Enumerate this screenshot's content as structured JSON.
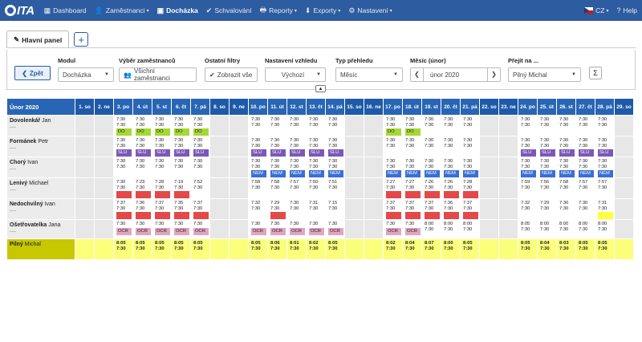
{
  "nav": {
    "logo_text": "ITA",
    "items": [
      {
        "label": "Dashboard",
        "icon": "grid-icon"
      },
      {
        "label": "Zaměstnanci",
        "icon": "user-icon"
      },
      {
        "label": "Docházka",
        "icon": "calendar-icon",
        "active": true
      },
      {
        "label": "Schvalování",
        "icon": "check-icon"
      },
      {
        "label": "Reporty",
        "icon": "print-icon"
      },
      {
        "label": "Exporty",
        "icon": "download-icon"
      },
      {
        "label": "Nastavení",
        "icon": "gear-icon"
      }
    ],
    "lang": "CZ",
    "help": "Help"
  },
  "tabs": {
    "main": "Hlavní panel",
    "add": "+"
  },
  "filters": {
    "back": "Zpět",
    "modul_label": "Modul",
    "modul_value": "Docházka",
    "employees_label": "Výběr zaměstnanců",
    "employees_value": "Všichni zaměstnanci",
    "other_label": "Ostatní filtry",
    "other_value": "Zobrazit vše",
    "look_label": "Nastavení vzhledu",
    "look_value": "Výchozí",
    "overview_label": "Typ přehledu",
    "overview_value": "Měsíc",
    "month_label": "Měsíc (únor)",
    "month_value": "únor 2020",
    "goto_label": "Přejít na ...",
    "goto_value": "Pilný Michal",
    "sigma": "Σ"
  },
  "grid": {
    "title": "Únor 2020",
    "days": [
      "1. so",
      "2. ne",
      "3. po",
      "4. út",
      "5. st",
      "6. čt",
      "7. pá",
      "8. so",
      "9. ne",
      "10. po",
      "11. út",
      "12. st",
      "13. čt",
      "14. pá",
      "15. so",
      "16. ne",
      "17. po",
      "18. út",
      "19. st",
      "20. čt",
      "21. pá",
      "22. so",
      "23. ne",
      "24. po",
      "25. út",
      "26. st",
      "27. čt",
      "28. pá",
      "29. so"
    ],
    "weekend": [
      0,
      1,
      7,
      8,
      14,
      15,
      21,
      22,
      28
    ],
    "employees": [
      {
        "last": "Dovolenkář",
        "first": "Jan",
        "sub": "----",
        "cells": {
          "2": [
            "7:30",
            "7:30",
            "DO",
            "green"
          ],
          "3": [
            "7:30",
            "7:30",
            "DO",
            "green"
          ],
          "4": [
            "7:30",
            "7:30",
            "DO",
            "green"
          ],
          "5": [
            "7:30",
            "7:30",
            "DO",
            "green"
          ],
          "6": [
            "7:30",
            "7:30",
            "DO",
            "green"
          ],
          "9": [
            "7:30",
            "7:30",
            ""
          ],
          "10": [
            "7:30",
            "7:30",
            ""
          ],
          "11": [
            "7:30",
            "7:30",
            ""
          ],
          "12": [
            "7:30",
            "7:30",
            ""
          ],
          "13": [
            "7:30",
            "7:30",
            ""
          ],
          "16": [
            "7:30",
            "7:30",
            "DO",
            "green"
          ],
          "17": [
            "7:30",
            "7:30",
            "DO",
            "green"
          ],
          "18": [
            "7:30",
            "7:30",
            ""
          ],
          "19": [
            "7:30",
            "7:30",
            ""
          ],
          "20": [
            "7:30",
            "7:30",
            ""
          ],
          "23": [
            "7:30",
            "7:30",
            ""
          ],
          "24": [
            "7:30",
            "7:30",
            ""
          ],
          "25": [
            "7:30",
            "7:30",
            ""
          ],
          "26": [
            "7:30",
            "7:30",
            ""
          ],
          "27": [
            "7:30",
            "7:30",
            ""
          ]
        }
      },
      {
        "last": "Formánek",
        "first": "Petr",
        "sub": "----",
        "cells": {
          "2": [
            "7:30",
            "7:30",
            "SLU",
            "purple"
          ],
          "3": [
            "7:30",
            "7:30",
            "SLU",
            "purple"
          ],
          "4": [
            "7:30",
            "7:30",
            "SLU",
            "purple"
          ],
          "5": [
            "7:30",
            "7:30",
            "SLU",
            "purple"
          ],
          "6": [
            "7:30",
            "7:30",
            "SLU",
            "purple"
          ],
          "9": [
            "7:30",
            "7:30",
            "SLU",
            "purple"
          ],
          "10": [
            "7:30",
            "7:30",
            "SLU",
            "purple"
          ],
          "11": [
            "7:30",
            "7:30",
            "SLU",
            "purple"
          ],
          "12": [
            "7:30",
            "7:30",
            "SLU",
            "purple"
          ],
          "13": [
            "7:30",
            "7:30",
            "SLU",
            "purple"
          ],
          "16": [
            "7:30",
            "7:30",
            ""
          ],
          "17": [
            "7:30",
            "7:30",
            ""
          ],
          "18": [
            "7:30",
            "7:30",
            ""
          ],
          "19": [
            "7:30",
            "7:30",
            ""
          ],
          "20": [
            "7:30",
            "7:30",
            ""
          ],
          "23": [
            "7:30",
            "7:30",
            "SLU",
            "purple"
          ],
          "24": [
            "7:30",
            "7:30",
            "SLU",
            "purple"
          ],
          "25": [
            "7:30",
            "7:30",
            "SLU",
            "purple"
          ],
          "26": [
            "7:30",
            "7:30",
            "SLU",
            "purple"
          ],
          "27": [
            "7:30",
            "7:30",
            "SLU",
            "purple"
          ]
        }
      },
      {
        "last": "Chorý",
        "first": "Ivan",
        "sub": "----",
        "cells": {
          "2": [
            "7:30",
            "7:30",
            ""
          ],
          "3": [
            "7:30",
            "7:30",
            ""
          ],
          "4": [
            "7:30",
            "7:30",
            ""
          ],
          "5": [
            "7:30",
            "7:30",
            ""
          ],
          "6": [
            "7:30",
            "7:30",
            ""
          ],
          "9": [
            "7:30",
            "7:30",
            "NEM",
            "blue"
          ],
          "10": [
            "7:30",
            "7:30",
            "NEM",
            "blue"
          ],
          "11": [
            "7:30",
            "7:30",
            "NEM",
            "blue"
          ],
          "12": [
            "7:30",
            "7:30",
            "NEM",
            "blue"
          ],
          "13": [
            "7:30",
            "7:30",
            "NEM",
            "blue"
          ],
          "16": [
            "7:30",
            "7:30",
            "NEM",
            "blue"
          ],
          "17": [
            "7:30",
            "7:30",
            "NEM",
            "blue"
          ],
          "18": [
            "7:30",
            "7:30",
            "NEM",
            "blue"
          ],
          "19": [
            "7:30",
            "7:30",
            "NEM",
            "blue"
          ],
          "20": [
            "7:30",
            "7:30",
            "NEM",
            "blue"
          ],
          "23": [
            "7:30",
            "7:30",
            "NEM",
            "blue"
          ],
          "24": [
            "7:30",
            "7:30",
            "NEM",
            "blue"
          ],
          "25": [
            "7:30",
            "7:30",
            "NEM",
            "blue"
          ],
          "26": [
            "7:30",
            "7:30",
            "NEM",
            "blue"
          ],
          "27": [
            "7:30",
            "7:30",
            "NEM",
            "blue"
          ]
        }
      },
      {
        "last": "Lenivý",
        "first": "Michael",
        "sub": "----",
        "cells": {
          "2": [
            "7:30",
            "7:30",
            "",
            "red"
          ],
          "3": [
            "7:23",
            "7:30",
            "",
            "red"
          ],
          "4": [
            "7:28",
            "7:30",
            "",
            "red"
          ],
          "5": [
            "7:19",
            "7:30",
            "",
            "red"
          ],
          "6": [
            "7:52",
            "7:30",
            ""
          ],
          "9": [
            "7:58",
            "7:30",
            ""
          ],
          "10": [
            "7:58",
            "7:30",
            ""
          ],
          "11": [
            "7:57",
            "7:30",
            ""
          ],
          "12": [
            "7:50",
            "7:30",
            ""
          ],
          "13": [
            "7:51",
            "7:30",
            ""
          ],
          "16": [
            "7:27",
            "7:30",
            "",
            "red"
          ],
          "17": [
            "7:27",
            "7:30",
            "",
            "red"
          ],
          "18": [
            "7:26",
            "7:30",
            "",
            "red"
          ],
          "19": [
            "7:26",
            "7:30",
            "",
            "red"
          ],
          "20": [
            "7:28",
            "7:30",
            "",
            "red"
          ],
          "23": [
            "7:59",
            "7:30",
            ""
          ],
          "24": [
            "7:56",
            "7:30",
            ""
          ],
          "25": [
            "7:58",
            "7:30",
            ""
          ],
          "26": [
            "7:57",
            "7:30",
            ""
          ],
          "27": [
            "7:57",
            "7:30",
            ""
          ]
        }
      },
      {
        "last": "Nedochvilný",
        "first": "Ivan",
        "sub": "----",
        "cells": {
          "2": [
            "7:37",
            "7:30",
            "",
            "red"
          ],
          "3": [
            "7:36",
            "7:30",
            "",
            "red"
          ],
          "4": [
            "7:37",
            "7:30",
            "",
            "red"
          ],
          "5": [
            "7:35",
            "7:30",
            "",
            "red"
          ],
          "6": [
            "7:37",
            "7:30",
            "",
            "red"
          ],
          "9": [
            "7:32",
            "7:30",
            ""
          ],
          "10": [
            "7:29",
            "7:30",
            "",
            "red"
          ],
          "11": [
            "7:30",
            "7:30",
            ""
          ],
          "12": [
            "7:31",
            "7:30",
            ""
          ],
          "13": [
            "7:15",
            "7:30",
            ""
          ],
          "16": [
            "7:37",
            "7:30",
            "",
            "red"
          ],
          "17": [
            "7:37",
            "7:30",
            "",
            "red"
          ],
          "18": [
            "7:37",
            "7:30",
            "",
            "red"
          ],
          "19": [
            "7:36",
            "7:30",
            "",
            "red"
          ],
          "20": [
            "7:37",
            "7:30",
            "",
            "red"
          ],
          "23": [
            "7:32",
            "7:30",
            ""
          ],
          "24": [
            "7:29",
            "7:30",
            ""
          ],
          "25": [
            "7:30",
            "7:30",
            ""
          ],
          "26": [
            "7:30",
            "7:30",
            ""
          ],
          "27": [
            "7:31",
            "7:30",
            "",
            "yellowbox"
          ]
        }
      },
      {
        "last": "Ošetřovatelka",
        "first": "Jana",
        "sub": "----",
        "cells": {
          "2": [
            "7:30",
            "",
            "OCR",
            "pink"
          ],
          "3": [
            "7:30",
            "",
            "OCR",
            "pink"
          ],
          "4": [
            "7:30",
            "",
            "OCR",
            "pink"
          ],
          "5": [
            "7:30",
            "",
            "OCR",
            "pink"
          ],
          "6": [
            "7:30",
            "",
            "OCR",
            "pink"
          ],
          "9": [
            "7:30",
            "",
            "OCR",
            "pink"
          ],
          "10": [
            "7:30",
            "",
            "OCR",
            "pink"
          ],
          "11": [
            "7:30",
            "",
            "OCR",
            "pink"
          ],
          "12": [
            "7:30",
            "",
            "OCR",
            "pink"
          ],
          "13": [
            "7:30",
            "",
            "OCR",
            "pink"
          ],
          "16": [
            "7:30",
            "",
            "OCR",
            "pink"
          ],
          "17": [
            "7:30",
            "",
            "OCR",
            "pink"
          ],
          "18": [
            "8:00",
            "7:30",
            ""
          ],
          "19": [
            "8:00",
            "7:30",
            ""
          ],
          "20": [
            "8:00",
            "7:30",
            ""
          ],
          "23": [
            "8:05",
            "7:30",
            ""
          ],
          "24": [
            "8:00",
            "7:30",
            ""
          ],
          "25": [
            "8:00",
            "7:30",
            ""
          ],
          "26": [
            "8:00",
            "7:30",
            ""
          ],
          "27": [
            "8:00",
            "7:30",
            ""
          ]
        }
      },
      {
        "last": "Pilný",
        "first": "Michal",
        "sub": "",
        "yellow": true,
        "cells": {
          "2": [
            "8:05",
            "7:30",
            ""
          ],
          "3": [
            "8:05",
            "7:30",
            ""
          ],
          "4": [
            "8:05",
            "7:30",
            ""
          ],
          "5": [
            "8:05",
            "7:30",
            ""
          ],
          "6": [
            "8:05",
            "7:30",
            ""
          ],
          "9": [
            "8:05",
            "7:30",
            ""
          ],
          "10": [
            "8:06",
            "7:30",
            ""
          ],
          "11": [
            "8:01",
            "7:30",
            ""
          ],
          "12": [
            "8:02",
            "7:30",
            ""
          ],
          "13": [
            "8:05",
            "7:30",
            ""
          ],
          "16": [
            "8:02",
            "7:30",
            ""
          ],
          "17": [
            "8:04",
            "7:30",
            ""
          ],
          "18": [
            "8:07",
            "7:30",
            ""
          ],
          "19": [
            "8:00",
            "7:30",
            ""
          ],
          "20": [
            "8:05",
            "7:30",
            ""
          ],
          "23": [
            "8:05",
            "7:30",
            ""
          ],
          "24": [
            "8:04",
            "7:30",
            ""
          ],
          "25": [
            "8:03",
            "7:30",
            ""
          ],
          "26": [
            "8:05",
            "7:30",
            ""
          ],
          "27": [
            "8:05",
            "7:30",
            ""
          ]
        }
      }
    ]
  }
}
